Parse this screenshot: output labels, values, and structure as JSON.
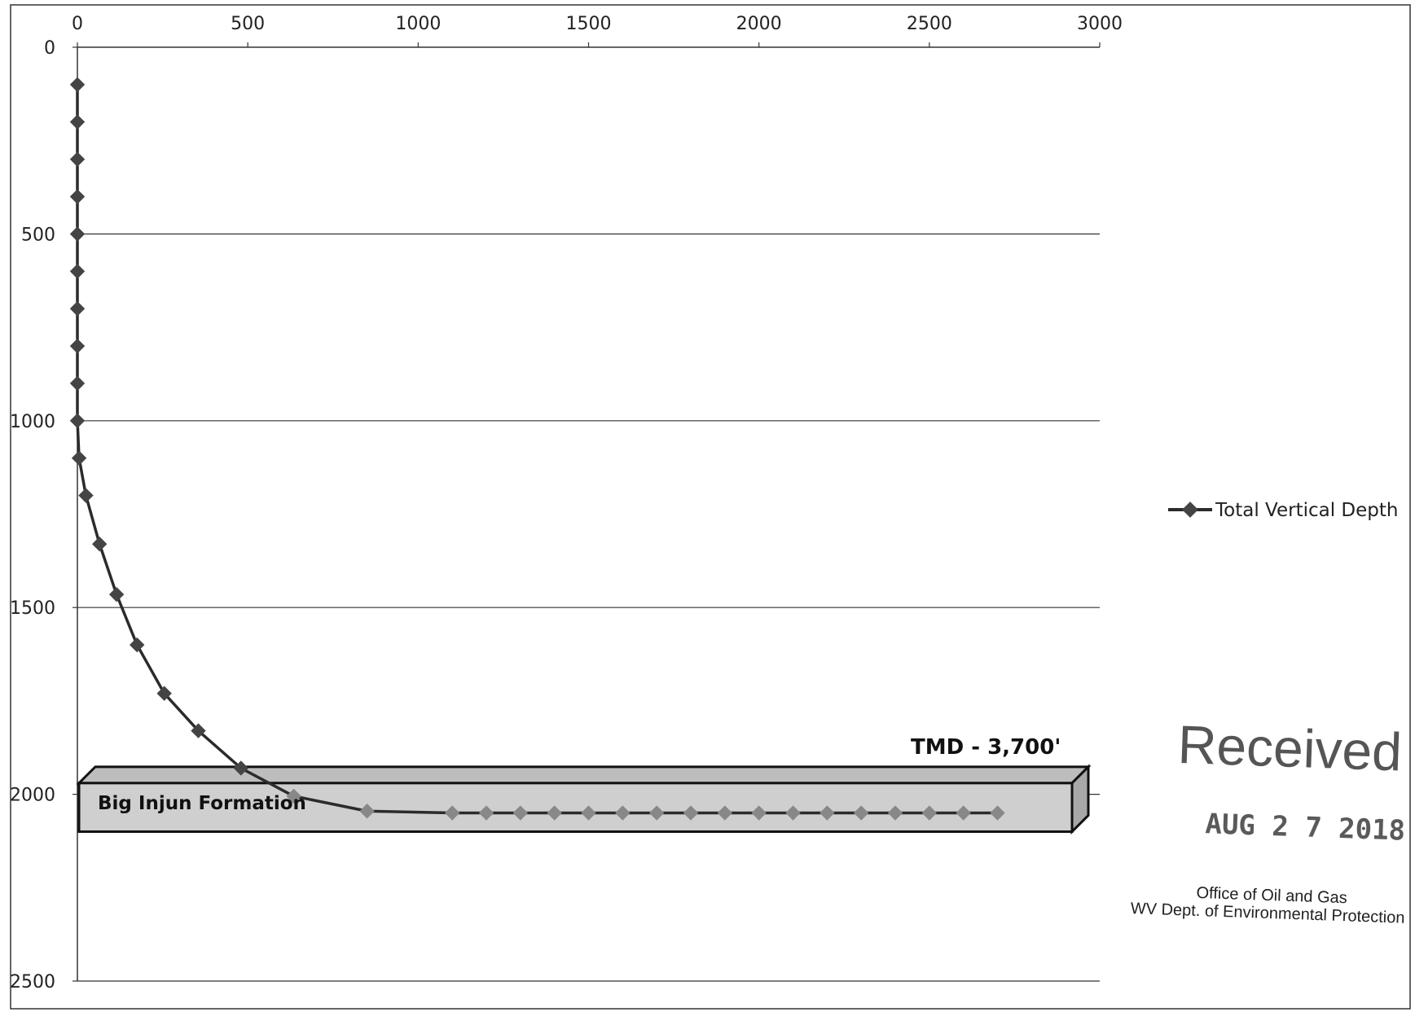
{
  "chart_data": {
    "type": "line",
    "title": "",
    "xlabel": "",
    "ylabel": "",
    "xlim": [
      0,
      3000
    ],
    "ylim": [
      0,
      2500
    ],
    "y_inverted": true,
    "x_axis_position": "top",
    "x_ticks": [
      "0",
      "500",
      "1000",
      "1500",
      "2000",
      "2500",
      "3000"
    ],
    "y_ticks": [
      "0",
      "500",
      "1000",
      "1500",
      "2000",
      "2500"
    ],
    "grid": "horizontal",
    "legend_position": "right",
    "series": [
      {
        "name": "Total Vertical Depth",
        "color": "#2b2b2b",
        "points": [
          {
            "x": 0,
            "y": 100
          },
          {
            "x": 0,
            "y": 200
          },
          {
            "x": 0,
            "y": 300
          },
          {
            "x": 0,
            "y": 400
          },
          {
            "x": 0,
            "y": 500
          },
          {
            "x": 0,
            "y": 600
          },
          {
            "x": 0,
            "y": 700
          },
          {
            "x": 0,
            "y": 800
          },
          {
            "x": 0,
            "y": 900
          },
          {
            "x": 0,
            "y": 1000
          },
          {
            "x": 5,
            "y": 1100
          },
          {
            "x": 25,
            "y": 1200
          },
          {
            "x": 65,
            "y": 1330
          },
          {
            "x": 115,
            "y": 1465
          },
          {
            "x": 175,
            "y": 1600
          },
          {
            "x": 255,
            "y": 1730
          },
          {
            "x": 355,
            "y": 1830
          },
          {
            "x": 480,
            "y": 1930
          },
          {
            "x": 635,
            "y": 2005
          },
          {
            "x": 850,
            "y": 2045
          },
          {
            "x": 1100,
            "y": 2050
          },
          {
            "x": 1200,
            "y": 2050
          },
          {
            "x": 1300,
            "y": 2050
          },
          {
            "x": 1400,
            "y": 2050
          },
          {
            "x": 1500,
            "y": 2050
          },
          {
            "x": 1600,
            "y": 2050
          },
          {
            "x": 1700,
            "y": 2050
          },
          {
            "x": 1800,
            "y": 2050
          },
          {
            "x": 1900,
            "y": 2050
          },
          {
            "x": 2000,
            "y": 2050
          },
          {
            "x": 2100,
            "y": 2050
          },
          {
            "x": 2200,
            "y": 2050
          },
          {
            "x": 2300,
            "y": 2050
          },
          {
            "x": 2400,
            "y": 2050
          },
          {
            "x": 2500,
            "y": 2050
          },
          {
            "x": 2600,
            "y": 2050
          },
          {
            "x": 2700,
            "y": 2050
          }
        ]
      }
    ],
    "annotations": [
      {
        "text": "TMD - 3,700'"
      },
      {
        "text": "Big Injun Formation",
        "y_range": [
          1970,
          2100
        ]
      }
    ]
  },
  "stamp": {
    "received": "Received",
    "date": "AUG 2 7 2018",
    "office_line1": "Office of Oil and Gas",
    "office_line2": "WV Dept. of Environmental Protection"
  },
  "colors": {
    "line": "#2b2b2b",
    "marker_dark": "#444444",
    "marker_light": "#888888",
    "formation_fill": "#cfcfcf",
    "grid": "#333333"
  }
}
